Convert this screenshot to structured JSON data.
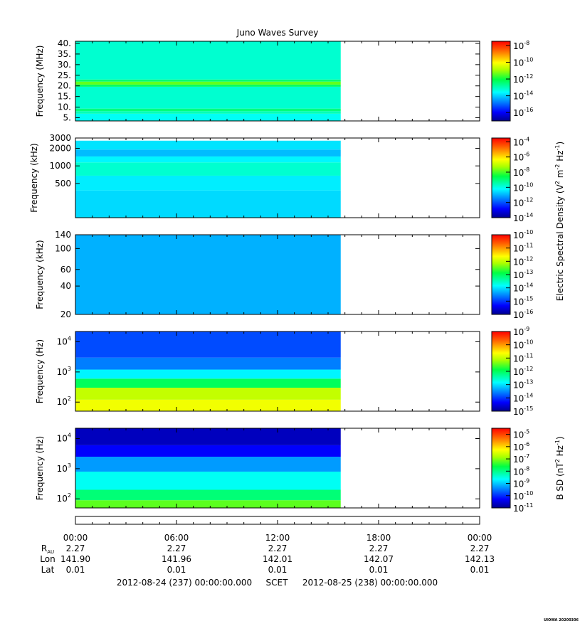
{
  "chart_data": [
    {
      "type": "heatmap",
      "title": "Juno Waves Survey",
      "ylabel": "Frequency (MHz)",
      "y_scale": "linear",
      "ylim": [
        3.5,
        41
      ],
      "y_ticks": [
        {
          "value": 40,
          "label": "40."
        },
        {
          "value": 35,
          "label": "35."
        },
        {
          "value": 30,
          "label": "30."
        },
        {
          "value": 25,
          "label": "25."
        },
        {
          "value": 20,
          "label": "20."
        },
        {
          "value": 15,
          "label": "15."
        },
        {
          "value": 10,
          "label": "10."
        },
        {
          "value": 5,
          "label": "5."
        }
      ],
      "bands": [
        {
          "from": 3.5,
          "to": 6.9,
          "log10": -13.5
        },
        {
          "from": 6.9,
          "to": 8.1,
          "log10": -13.0
        },
        {
          "from": 8.1,
          "to": 9.3,
          "log10": -12.5
        },
        {
          "from": 9.3,
          "to": 19.6,
          "log10": -13.2
        },
        {
          "from": 19.6,
          "to": 20.6,
          "log10": -12.3
        },
        {
          "from": 20.6,
          "to": 22.0,
          "log10": -11.4
        },
        {
          "from": 22.0,
          "to": 23.0,
          "log10": -12.4
        },
        {
          "from": 23.0,
          "to": 41.0,
          "log10": -13.2
        }
      ],
      "colorbar": {
        "range": [
          -17,
          -7.5
        ],
        "ticks": [
          {
            "exp": "-8",
            "value": -8
          },
          {
            "exp": "-10",
            "value": -10
          },
          {
            "exp": "-12",
            "value": -12
          },
          {
            "exp": "-14",
            "value": -14
          },
          {
            "exp": "-16",
            "value": -16
          }
        ]
      }
    },
    {
      "type": "heatmap",
      "ylabel": "Frequency (kHz)",
      "y_scale": "log",
      "ylim": [
        130,
        3000
      ],
      "y_ticks": [
        {
          "value": 3000,
          "label": "3000"
        },
        {
          "value": 2000,
          "label": "2000"
        },
        {
          "value": 1000,
          "label": "1000"
        },
        {
          "value": 500,
          "label": "500"
        }
      ],
      "bands": [
        {
          "from": 130,
          "to": 380,
          "log10": -10.6
        },
        {
          "from": 380,
          "to": 680,
          "log10": -10.4
        },
        {
          "from": 680,
          "to": 1150,
          "log10": -9.8
        },
        {
          "from": 1150,
          "to": 1450,
          "log10": -10.3
        },
        {
          "from": 1450,
          "to": 1900,
          "log10": -10.9
        },
        {
          "from": 1900,
          "to": 2700,
          "log10": -10.5
        }
      ],
      "colorbar": {
        "range": [
          -14,
          -3.5
        ],
        "ticks": [
          {
            "exp": "-4",
            "value": -4
          },
          {
            "exp": "-6",
            "value": -6
          },
          {
            "exp": "-8",
            "value": -8
          },
          {
            "exp": "-10",
            "value": -10
          },
          {
            "exp": "-12",
            "value": -12
          },
          {
            "exp": "-14",
            "value": -14
          }
        ]
      }
    },
    {
      "type": "heatmap",
      "ylabel": "Frequency (kHz)",
      "y_scale": "log",
      "ylim": [
        20,
        140
      ],
      "y_ticks": [
        {
          "value": 140,
          "label": "140"
        },
        {
          "value": 100,
          "label": "100"
        },
        {
          "value": 60,
          "label": "60"
        },
        {
          "value": 40,
          "label": "40"
        },
        {
          "value": 20,
          "label": "20"
        }
      ],
      "bands": [
        {
          "from": 20,
          "to": 140,
          "log10": -14.3
        }
      ],
      "colorbar": {
        "range": [
          -16,
          -10
        ],
        "ticks": [
          {
            "exp": "-10",
            "value": -10
          },
          {
            "exp": "-11",
            "value": -11
          },
          {
            "exp": "-12",
            "value": -12
          },
          {
            "exp": "-13",
            "value": -13
          },
          {
            "exp": "-14",
            "value": -14
          },
          {
            "exp": "-15",
            "value": -15
          },
          {
            "exp": "-16",
            "value": -16
          }
        ]
      }
    },
    {
      "type": "heatmap",
      "ylabel": "Frequency (Hz)",
      "y_scale": "log",
      "ylim": [
        50,
        22000
      ],
      "y_ticks": [
        {
          "value": 10000,
          "base": "10",
          "exp": "4"
        },
        {
          "value": 1000,
          "base": "10",
          "exp": "3"
        },
        {
          "value": 100,
          "base": "10",
          "exp": "2"
        }
      ],
      "bands": [
        {
          "from": 50,
          "to": 120,
          "log10": -10.7
        },
        {
          "from": 120,
          "to": 300,
          "log10": -11.0
        },
        {
          "from": 300,
          "to": 600,
          "log10": -12.0
        },
        {
          "from": 600,
          "to": 1200,
          "log10": -12.9
        },
        {
          "from": 1200,
          "to": 3000,
          "log10": -13.6
        },
        {
          "from": 3000,
          "to": 22000,
          "log10": -13.9
        }
      ],
      "colorbar": {
        "range": [
          -15,
          -9
        ],
        "ticks": [
          {
            "exp": "-9",
            "value": -9
          },
          {
            "exp": "-10",
            "value": -10
          },
          {
            "exp": "-11",
            "value": -11
          },
          {
            "exp": "-12",
            "value": -12
          },
          {
            "exp": "-13",
            "value": -13
          },
          {
            "exp": "-14",
            "value": -14
          },
          {
            "exp": "-15",
            "value": -15
          }
        ]
      }
    },
    {
      "type": "heatmap",
      "ylabel": "Frequency (Hz)",
      "y_scale": "log",
      "ylim": [
        50,
        22000
      ],
      "y_ticks": [
        {
          "value": 10000,
          "base": "10",
          "exp": "4"
        },
        {
          "value": 1000,
          "base": "10",
          "exp": "3"
        },
        {
          "value": 100,
          "base": "10",
          "exp": "2"
        }
      ],
      "bands": [
        {
          "from": 50,
          "to": 90,
          "log10": -7.2
        },
        {
          "from": 90,
          "to": 200,
          "log10": -7.9
        },
        {
          "from": 200,
          "to": 800,
          "log10": -8.6
        },
        {
          "from": 800,
          "to": 2500,
          "log10": -9.3
        },
        {
          "from": 2500,
          "to": 6000,
          "log10": -10.3
        },
        {
          "from": 6000,
          "to": 22000,
          "log10": -10.7
        }
      ],
      "colorbar": {
        "range": [
          -11,
          -4.5
        ],
        "ticks": [
          {
            "exp": "-5",
            "value": -5
          },
          {
            "exp": "-6",
            "value": -6
          },
          {
            "exp": "-7",
            "value": -7
          },
          {
            "exp": "-8",
            "value": -8
          },
          {
            "exp": "-9",
            "value": -9
          },
          {
            "exp": "-10",
            "value": -10
          },
          {
            "exp": "-11",
            "value": -11
          }
        ]
      }
    }
  ],
  "data_coverage": {
    "start_hour": 0,
    "end_hour": 15.75
  },
  "colorbar_labels": {
    "electric": {
      "prefix": "Electric Spectral Density (V",
      "mid": " m",
      "mid2": " Hz",
      "suffix": ")",
      "exp1": "2",
      "exp2": "-2",
      "exp3": "-1"
    },
    "magnetic": {
      "prefix": "B SD (nT",
      "mid": " Hz",
      "suffix": ")",
      "exp1": "2",
      "exp2": "-1"
    }
  },
  "time_axis": {
    "hours": [
      0,
      6,
      12,
      18,
      24
    ],
    "tick_labels": [
      "00:00",
      "06:00",
      "12:00",
      "18:00",
      "00:00"
    ],
    "row_labels": {
      "rau": "R",
      "rau_sub": "AU",
      "lon": "Lon",
      "lat": "Lat"
    },
    "r_au": [
      "2.27",
      "2.27",
      "2.27",
      "2.27",
      "2.27"
    ],
    "lon": [
      "141.90",
      "141.96",
      "142.01",
      "142.07",
      "142.13"
    ],
    "lat": [
      "0.01",
      "0.01",
      "0.01",
      "0.01",
      "0.01"
    ]
  },
  "footer": {
    "start": "2012-08-24 (237) 00:00:00.000",
    "mid": "SCET",
    "end": "2012-08-25 (238) 00:00:00.000"
  },
  "credit": "UIOWA 20200306"
}
